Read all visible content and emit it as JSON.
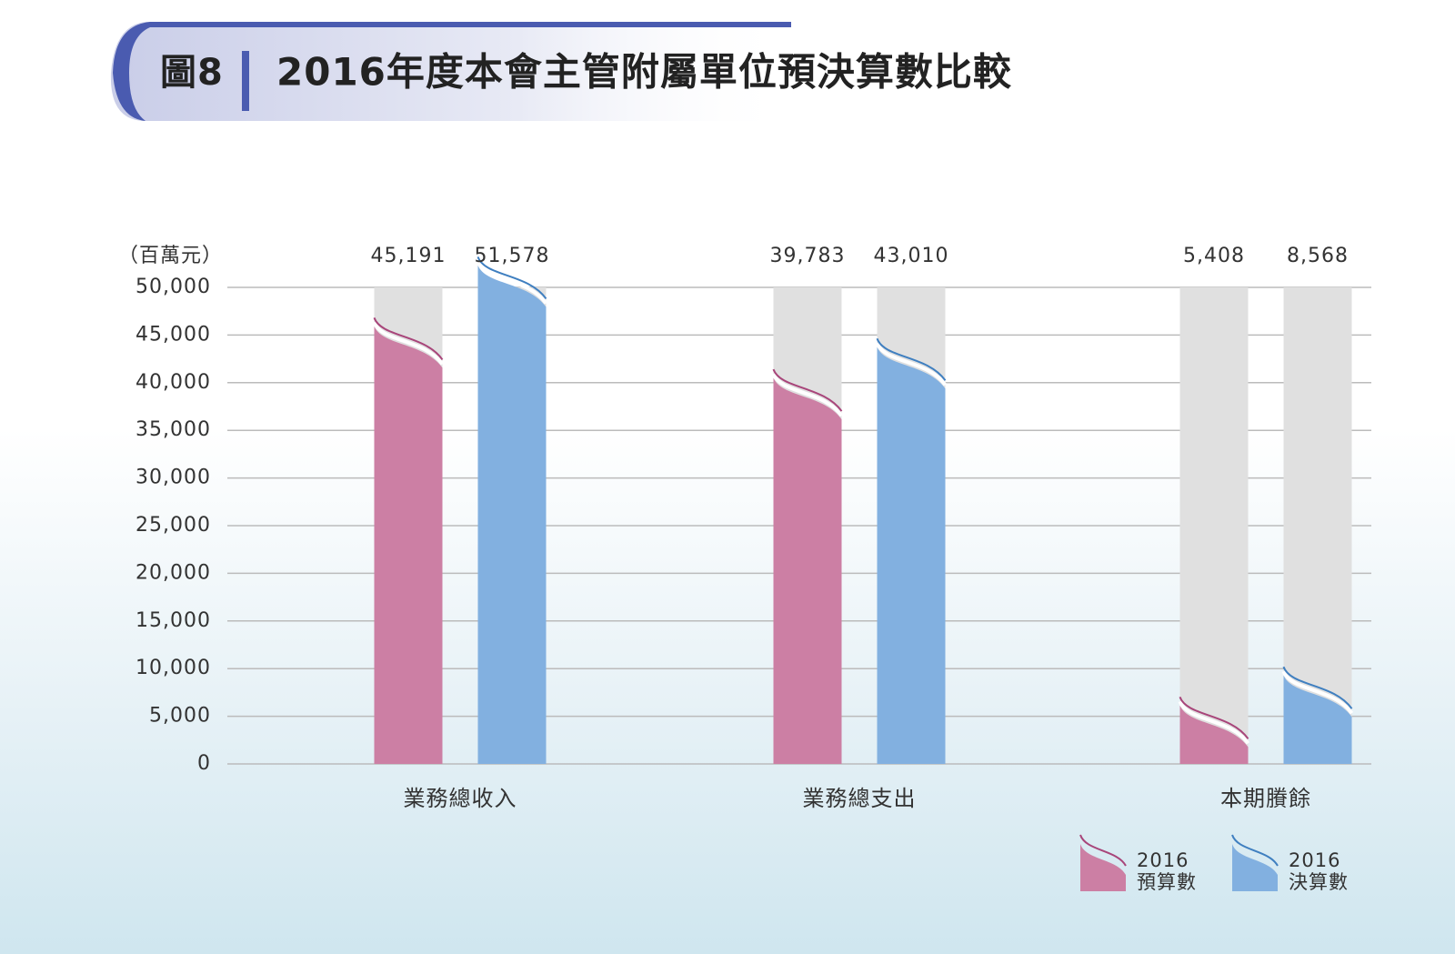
{
  "figure_label": "圖8",
  "chart_data": {
    "type": "bar",
    "title": "2016年度本會主管附屬單位預決算數比較",
    "y_unit": "（百萬元）",
    "categories": [
      "業務總收入",
      "業務總支出",
      "本期賸餘"
    ],
    "series": [
      {
        "name": "2016\n預算數",
        "color": "#cc7fa4",
        "line_color": "#a8457a",
        "values": [
          45191,
          39783,
          5408
        ],
        "value_labels": [
          "45,191",
          "39,783",
          "5,408"
        ]
      },
      {
        "name": "2016\n決算數",
        "color": "#82b0e0",
        "line_color": "#3f7fc0",
        "values": [
          51578,
          43010,
          8568
        ],
        "value_labels": [
          "51,578",
          "43,010",
          "8,568"
        ]
      }
    ],
    "ylim": [
      0,
      50000
    ],
    "yticks": [
      0,
      {
        "value": 5000,
        "label": "5,000"
      },
      {
        "value": 10000,
        "label": "10,000"
      },
      {
        "value": 15000,
        "label": "15,000"
      },
      {
        "value": 20000,
        "label": "20,000"
      },
      {
        "value": 25000,
        "label": "25,000"
      },
      {
        "value": 30000,
        "label": "30,000"
      },
      {
        "value": 35000,
        "label": "35,000"
      },
      {
        "value": 40000,
        "label": "40,000"
      },
      {
        "value": 45000,
        "label": "45,000"
      },
      {
        "value": 50000,
        "label": "50,000"
      }
    ],
    "grid": true,
    "legend": "bottom-right"
  }
}
